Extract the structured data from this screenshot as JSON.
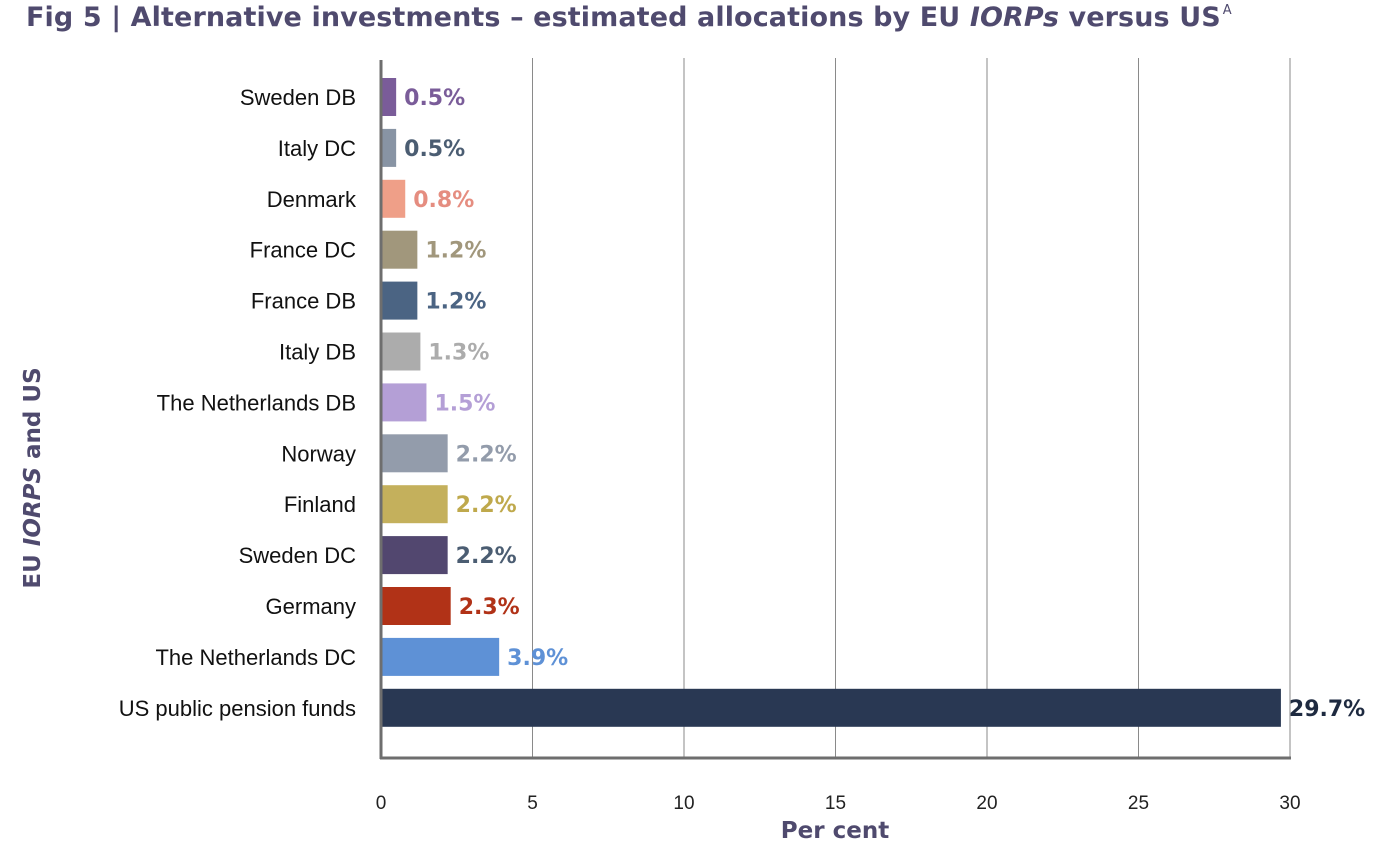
{
  "title": {
    "prefix": "Fig 5 | Alternative investments – estimated allocations by EU ",
    "italic": "IORPs",
    "suffix": " versus US",
    "superscript": "A"
  },
  "chart_data": {
    "type": "bar",
    "orientation": "horizontal",
    "title": "Fig 5 | Alternative investments – estimated allocations by EU IORPs versus US",
    "xlabel": "Per cent",
    "ylabel": {
      "prefix": "EU ",
      "italic": "IORPS",
      "suffix": " and US"
    },
    "xlim": [
      0,
      30
    ],
    "xticks": [
      0,
      5,
      10,
      15,
      20,
      25,
      30
    ],
    "grid": true,
    "categories": [
      "Sweden DB",
      "Italy DC",
      "Denmark",
      "France DC",
      "France DB",
      "Italy DB",
      "The Netherlands DB",
      "Norway",
      "Finland",
      "Sweden DC",
      "Germany",
      "The Netherlands DC",
      "US public pension funds"
    ],
    "values": [
      0.5,
      0.5,
      0.8,
      1.2,
      1.2,
      1.3,
      1.5,
      2.2,
      2.2,
      2.2,
      2.3,
      3.9,
      29.7
    ],
    "labels": [
      "0.5%",
      "0.5%",
      "0.8%",
      "1.2%",
      "1.2%",
      "1.3%",
      "1.5%",
      "2.2%",
      "2.2%",
      "2.2%",
      "2.3%",
      "3.9%",
      "29.7%"
    ],
    "bar_colors": [
      "#7a5c99",
      "#8894a4",
      "#ef9f88",
      "#a1977c",
      "#4b6483",
      "#acacac",
      "#b49fd6",
      "#939cab",
      "#c4b05c",
      "#52476f",
      "#b13217",
      "#5e91d6",
      "#293853"
    ],
    "label_colors": [
      "#7a5c99",
      "#4b5d72",
      "#e58d80",
      "#a1977c",
      "#4b6483",
      "#acacac",
      "#b49fd6",
      "#939cab",
      "#bfa94c",
      "#4b5d72",
      "#b13217",
      "#5e91d6",
      "#1e2a40"
    ]
  }
}
